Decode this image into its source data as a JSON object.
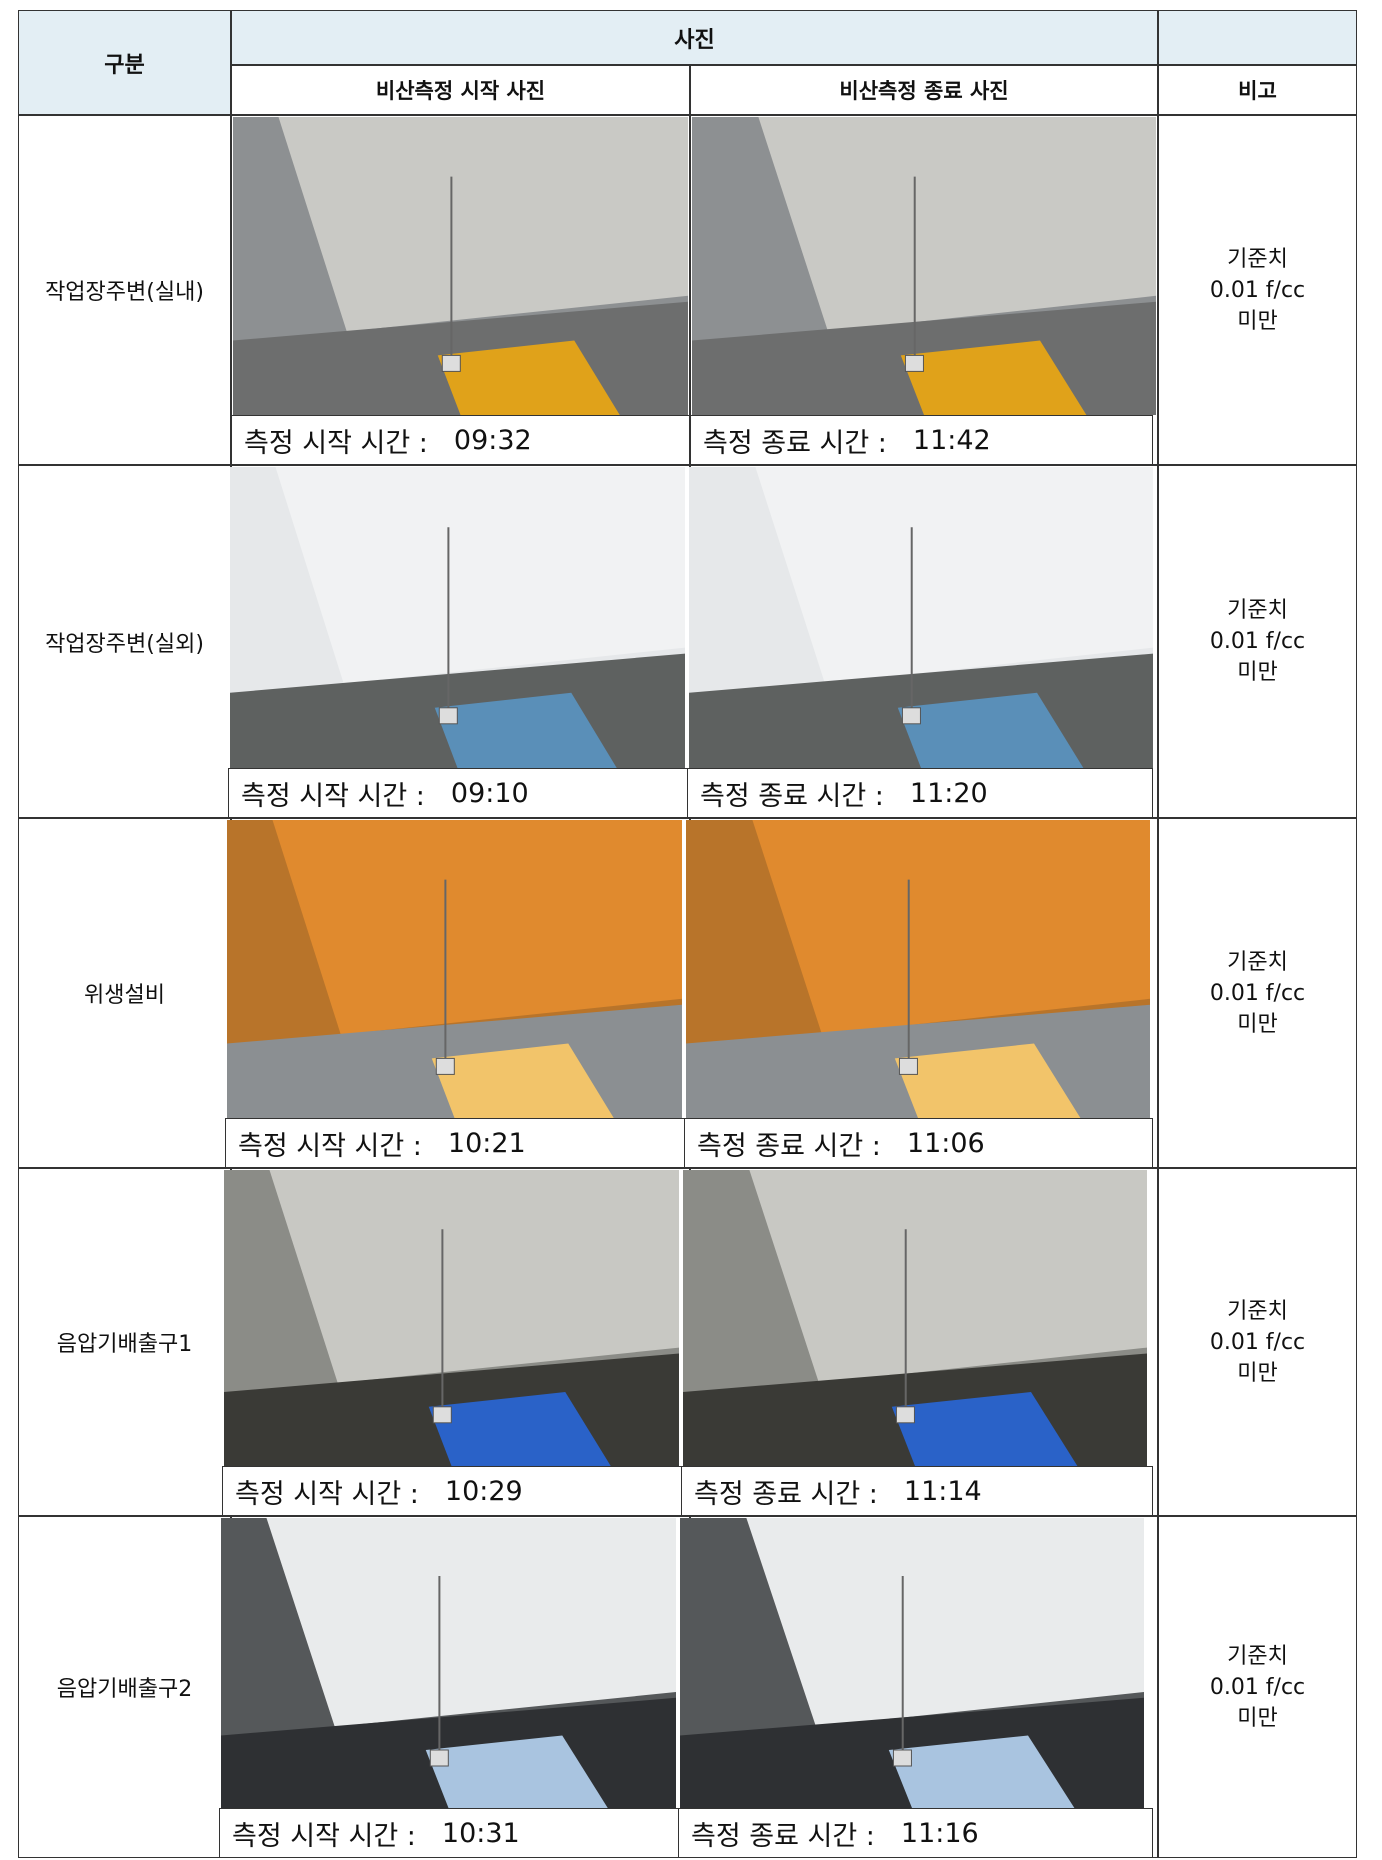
{
  "header": {
    "category": "구분",
    "photos": "사진",
    "start_photo": "비산측정 시작 사진",
    "end_photo": "비산측정 종료 사진",
    "remark": "비고"
  },
  "rows": [
    {
      "label": "작업장주변(실내)",
      "start_caption": "측정 시작 시간 :",
      "start_time": "09:32",
      "end_caption": "측정 종료 시간 :",
      "end_time": "11:42",
      "remark": [
        "기준치",
        "0.01 f/cc",
        "미만"
      ]
    },
    {
      "label": "작업장주변(실외)",
      "start_caption": "측정 시작 시간 :",
      "start_time": "09:10",
      "end_caption": "측정 종료 시간 :",
      "end_time": "11:20",
      "remark": [
        "기준치",
        "0.01 f/cc",
        "미만"
      ]
    },
    {
      "label": "위생설비",
      "start_caption": "측정 시작 시간 :",
      "start_time": "10:21",
      "end_caption": "측정 종료 시간 :",
      "end_time": "11:06",
      "remark": [
        "기준치",
        "0.01 f/cc",
        "미만"
      ]
    },
    {
      "label": "음압기배출구1",
      "start_caption": "측정 시작 시간 :",
      "start_time": "10:29",
      "end_caption": "측정 종료 시간 :",
      "end_time": "11:14",
      "remark": [
        "기준치",
        "0.01 f/cc",
        "미만"
      ]
    },
    {
      "label": "음압기배출구2",
      "start_caption": "측정 시작 시간 :",
      "start_time": "10:31",
      "end_caption": "측정 종료 시간 :",
      "end_time": "11:16",
      "remark": [
        "기준치",
        "0.01 f/cc",
        "미만"
      ]
    }
  ]
}
